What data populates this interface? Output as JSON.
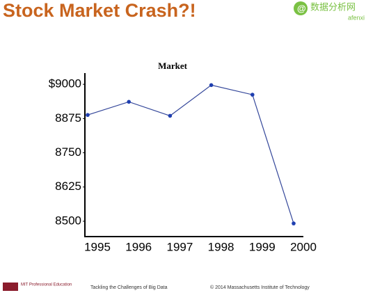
{
  "slide": {
    "title": "Stock Market Crash?!",
    "watermark": {
      "name": "数据分析网",
      "site": "afenxi"
    },
    "footer": {
      "org": "MIT Professional Education",
      "course": "Tackling the Challenges of Big Data",
      "copyright": "© 2014 Massachusetts Institute of Technology"
    }
  },
  "chart_data": {
    "type": "line",
    "title": "Market",
    "categories": [
      "1995",
      "1996",
      "1997",
      "1998",
      "1999",
      "2000"
    ],
    "series": [
      {
        "name": "Market",
        "color": "#34479a",
        "values": [
          8888,
          8936,
          8885,
          8997,
          8962,
          8492
        ]
      }
    ],
    "ylim": [
      8444,
      9041
    ],
    "yticks": [
      {
        "value": 9000,
        "label": "$9000"
      },
      8875,
      8750,
      8625,
      8500
    ]
  }
}
